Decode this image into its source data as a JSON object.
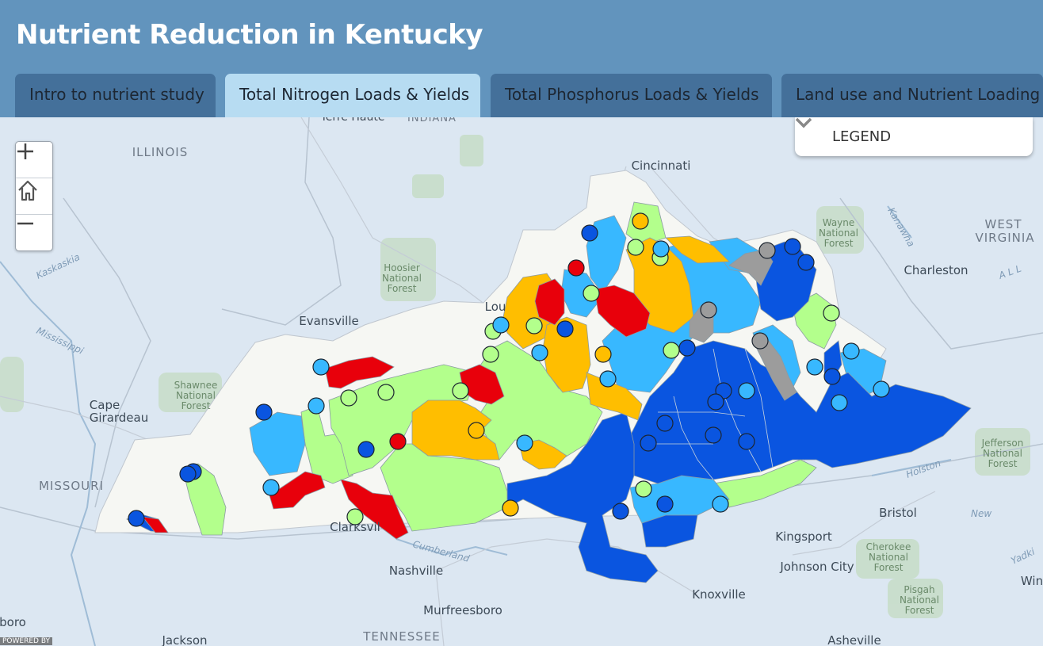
{
  "app": {
    "title": "Nutrient Reduction in Kentucky"
  },
  "tabs": [
    {
      "label": "Intro to nutrient study",
      "active": false
    },
    {
      "label": "Total Nitrogen Loads & Yields",
      "active": true
    },
    {
      "label": "Total Phosphorus Loads & Yields",
      "active": false
    },
    {
      "label": "Land use and Nutrient Loading",
      "active": false
    }
  ],
  "legend": {
    "label": "LEGEND",
    "icon": "chevron-down-icon"
  },
  "zoom_controls": {
    "zoom_in": "+",
    "home": "home-icon",
    "zoom_out": "−"
  },
  "attribution": "POWERED BY",
  "map": {
    "basemap_labels": {
      "illinois": "ILLINOIS",
      "indiana": "INDIANA",
      "missouri": "MISSOURI",
      "west_virginia": "WEST\nVIRGINIA",
      "tennessee": "TENNESSEE",
      "terre_haute": "Terre Haute",
      "cincinnati": "Cincinnati",
      "evansville": "Evansville",
      "louisville": "Lou",
      "charleston": "Charleston",
      "cape_girardeau": "Cape\nGirardeau",
      "nashville": "Nashville",
      "clarksville": "Clarksvil",
      "murfreesboro": "Murfreesboro",
      "jackson": "Jackson",
      "knoxville": "Knoxville",
      "bristol": "Bristol",
      "kingsport": "Kingsport",
      "johnson_city": "Johnson City",
      "asheville": "Asheville",
      "boro": "boro",
      "win": "Win",
      "new": "New",
      "hoosier": "Hoosier\nNational\nForest",
      "shawnee": "Shawnee\nNational\nForest",
      "wayne": "Wayne\nNational\nForest",
      "jefferson": "Jefferson\nNational\nForest",
      "cherokee": "Cherokee\nNational\nForest",
      "pisgah": "Pisgah\nNational\nForest",
      "kaskaskia": "Kaskaskia",
      "mississippi": "Mississippi",
      "kanawha": "Kanawha",
      "cumberland": "Cumberland",
      "holston": "Holston",
      "yadkin": "Yadki",
      "all": "A L L"
    },
    "colors": {
      "very_high": "#e8000b",
      "high": "#ffbe00",
      "medium": "#b3ff8c",
      "low": "#38b8ff",
      "very_low": "#0a55e0",
      "no_data": "#9c9c9c",
      "state_fill": "#f6f7f3",
      "water": "#dce7f2"
    }
  }
}
